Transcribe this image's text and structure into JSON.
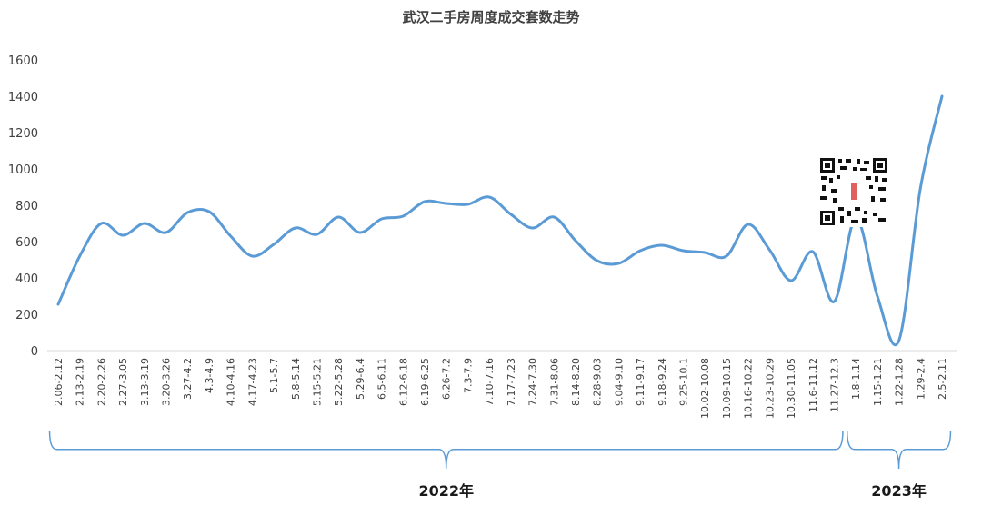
{
  "chart_data": {
    "type": "line",
    "title": "武汉二手房周度成交套数走势",
    "xlabel": "",
    "ylabel": "",
    "ylim": [
      0,
      1600
    ],
    "yticks": [
      0,
      200,
      400,
      600,
      800,
      1000,
      1200,
      1400,
      1600
    ],
    "grid": false,
    "legend": "none",
    "line_color": "#5b9bd5",
    "brace_color": "#5b9bd5",
    "categories": [
      "2.06-2.12",
      "2.13-2.19",
      "2.20-2.26",
      "2.27-3.05",
      "3.13-3.19",
      "3.20-3.26",
      "3.27-4.2",
      "4.3-4.9",
      "4.10-4.16",
      "4.17-4.23",
      "5.1-5.7",
      "5.8-5.14",
      "5.15-5.21",
      "5.22-5.28",
      "5.29-6.4",
      "6.5-6.11",
      "6.12-6.18",
      "6.19-6.25",
      "6.26-7.2",
      "7.3-7.9",
      "7.10-7.16",
      "7.17-7.23",
      "7.24-7.30",
      "7.31-8.06",
      "8.14-8.20",
      "8.28-9.03",
      "9.04-9.10",
      "9.11-9.17",
      "9.18-9.24",
      "9.25-10.1",
      "10.02-10.08",
      "10.09-10.15",
      "10.16-10.22",
      "10.23-10.29",
      "10.30-11.05",
      "11.6-11.12",
      "11.27-12.3",
      "1.8-1.14",
      "1.15-1.21",
      "1.22-1.28",
      "1.29-2.4",
      "2.5-2.11"
    ],
    "series": [
      {
        "values": [
          255,
          520,
          700,
          635,
          700,
          650,
          760,
          765,
          630,
          520,
          585,
          675,
          640,
          735,
          650,
          725,
          740,
          820,
          810,
          805,
          845,
          750,
          675,
          735,
          605,
          495,
          480,
          550,
          580,
          550,
          540,
          520,
          695,
          555,
          385,
          545,
          270,
          730,
          300,
          55,
          895,
          1400
        ]
      }
    ],
    "groups": [
      {
        "label": "2022年",
        "from": 0,
        "to": 36
      },
      {
        "label": "2023年",
        "from": 37,
        "to": 41
      }
    ]
  }
}
